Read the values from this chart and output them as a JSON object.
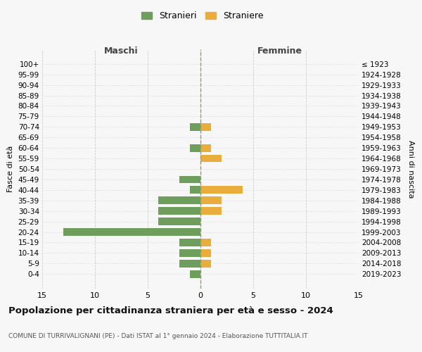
{
  "age_groups": [
    "100+",
    "95-99",
    "90-94",
    "85-89",
    "80-84",
    "75-79",
    "70-74",
    "65-69",
    "60-64",
    "55-59",
    "50-54",
    "45-49",
    "40-44",
    "35-39",
    "30-34",
    "25-29",
    "20-24",
    "15-19",
    "10-14",
    "5-9",
    "0-4"
  ],
  "birth_years": [
    "≤ 1923",
    "1924-1928",
    "1929-1933",
    "1934-1938",
    "1939-1943",
    "1944-1948",
    "1949-1953",
    "1954-1958",
    "1959-1963",
    "1964-1968",
    "1969-1973",
    "1974-1978",
    "1979-1983",
    "1984-1988",
    "1989-1993",
    "1994-1998",
    "1999-2003",
    "2004-2008",
    "2009-2013",
    "2014-2018",
    "2019-2023"
  ],
  "stranieri": [
    0,
    0,
    0,
    0,
    0,
    0,
    1,
    0,
    1,
    0,
    0,
    2,
    1,
    4,
    4,
    4,
    13,
    2,
    2,
    2,
    1
  ],
  "straniere": [
    0,
    0,
    0,
    0,
    0,
    0,
    1,
    0,
    1,
    2,
    0,
    0,
    4,
    2,
    2,
    0,
    0,
    1,
    1,
    1,
    0
  ],
  "color_male": "#6d9e5b",
  "color_female": "#e8ad3c",
  "xlim": 15,
  "title": "Popolazione per cittadinanza straniera per età e sesso - 2024",
  "subtitle": "COMUNE DI TURRIVALIGNANI (PE) - Dati ISTAT al 1° gennaio 2024 - Elaborazione TUTTITALIA.IT",
  "ylabel_left": "Fasce di età",
  "ylabel_right": "Anni di nascita",
  "xlabel_left": "Maschi",
  "xlabel_right": "Femmine",
  "legend_stranieri": "Stranieri",
  "legend_straniere": "Straniere",
  "bg_color": "#f7f7f7",
  "grid_color": "#cccccc"
}
